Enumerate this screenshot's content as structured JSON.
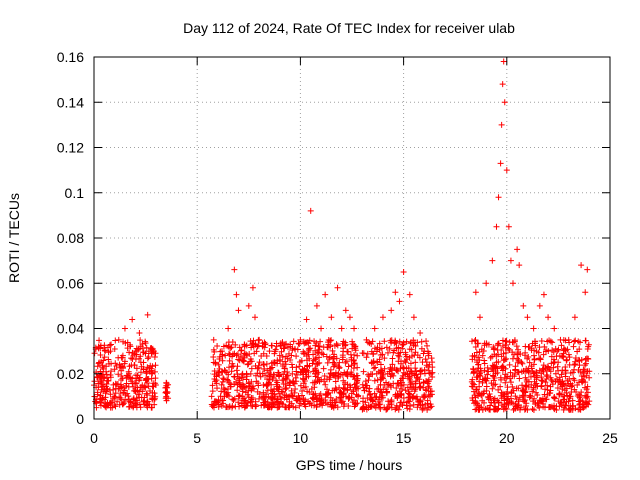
{
  "chart_data": {
    "type": "scatter",
    "title": "Day 112 of 2024, Rate Of TEC Index for receiver ulab",
    "xlabel": "GPS time / hours",
    "ylabel": "ROTI / TECUs",
    "xlim": [
      0,
      25
    ],
    "ylim": [
      0,
      0.16
    ],
    "xticks": [
      0,
      5,
      10,
      15,
      20,
      25
    ],
    "xtick_labels": [
      "0",
      "5",
      "10",
      "15",
      "20",
      "25"
    ],
    "yticks": [
      0,
      0.02,
      0.04,
      0.06,
      0.08,
      0.1,
      0.12,
      0.14,
      0.16
    ],
    "ytick_labels": [
      "0",
      "0.02",
      "0.04",
      "0.06",
      "0.08",
      "0.1",
      "0.12",
      "0.14",
      "0.16"
    ],
    "grid": true,
    "marker": "+",
    "color": "#ff0000",
    "series": [
      {
        "name": "ROTI",
        "x": [
          0.0,
          0.25,
          0.5,
          0.8,
          1.0,
          1.2,
          1.4,
          1.5,
          1.7,
          1.85,
          2.0,
          2.2,
          2.4,
          2.6,
          2.8,
          2.9,
          3.5,
          3.55,
          5.8,
          6.2,
          6.5,
          6.8,
          6.9,
          7.0,
          7.3,
          7.5,
          7.7,
          7.8,
          8.0,
          8.5,
          9.0,
          9.5,
          10.0,
          10.3,
          10.5,
          10.8,
          11.0,
          11.2,
          11.5,
          11.8,
          12.0,
          12.2,
          12.4,
          12.6,
          13.2,
          13.6,
          14.0,
          14.4,
          14.6,
          14.8,
          15.0,
          15.3,
          15.5,
          15.8,
          16.0,
          16.2,
          18.5,
          18.7,
          19.0,
          19.3,
          19.5,
          19.6,
          19.7,
          19.75,
          19.8,
          19.85,
          19.9,
          20.0,
          20.1,
          20.2,
          20.3,
          20.5,
          20.6,
          20.8,
          21.0,
          21.3,
          21.6,
          21.8,
          22.0,
          22.3,
          22.6,
          23.0,
          23.3,
          23.6,
          23.8,
          23.9
        ],
        "y": [
          0.015,
          0.025,
          0.018,
          0.03,
          0.022,
          0.035,
          0.028,
          0.04,
          0.02,
          0.044,
          0.03,
          0.038,
          0.025,
          0.046,
          0.02,
          0.03,
          0.016,
          0.012,
          0.035,
          0.03,
          0.04,
          0.066,
          0.055,
          0.048,
          0.032,
          0.05,
          0.058,
          0.045,
          0.035,
          0.03,
          0.028,
          0.032,
          0.035,
          0.044,
          0.092,
          0.05,
          0.04,
          0.055,
          0.045,
          0.058,
          0.04,
          0.048,
          0.045,
          0.04,
          0.035,
          0.04,
          0.045,
          0.048,
          0.056,
          0.052,
          0.065,
          0.055,
          0.045,
          0.038,
          0.03,
          0.028,
          0.056,
          0.045,
          0.06,
          0.07,
          0.085,
          0.098,
          0.113,
          0.13,
          0.148,
          0.158,
          0.14,
          0.11,
          0.085,
          0.07,
          0.06,
          0.075,
          0.068,
          0.05,
          0.045,
          0.04,
          0.05,
          0.055,
          0.045,
          0.04,
          0.035,
          0.035,
          0.045,
          0.068,
          0.056,
          0.066
        ]
      }
    ],
    "data_segments": [
      {
        "x_range": [
          0.0,
          3.0
        ],
        "y_range": [
          0.005,
          0.035
        ]
      },
      {
        "x_range": [
          3.45,
          3.6
        ],
        "y_range": [
          0.008,
          0.016
        ]
      },
      {
        "x_range": [
          5.7,
          12.8
        ],
        "y_range": [
          0.005,
          0.035
        ]
      },
      {
        "x_range": [
          13.0,
          16.4
        ],
        "y_range": [
          0.004,
          0.035
        ]
      },
      {
        "x_range": [
          18.3,
          24.0
        ],
        "y_range": [
          0.004,
          0.035
        ]
      }
    ]
  }
}
